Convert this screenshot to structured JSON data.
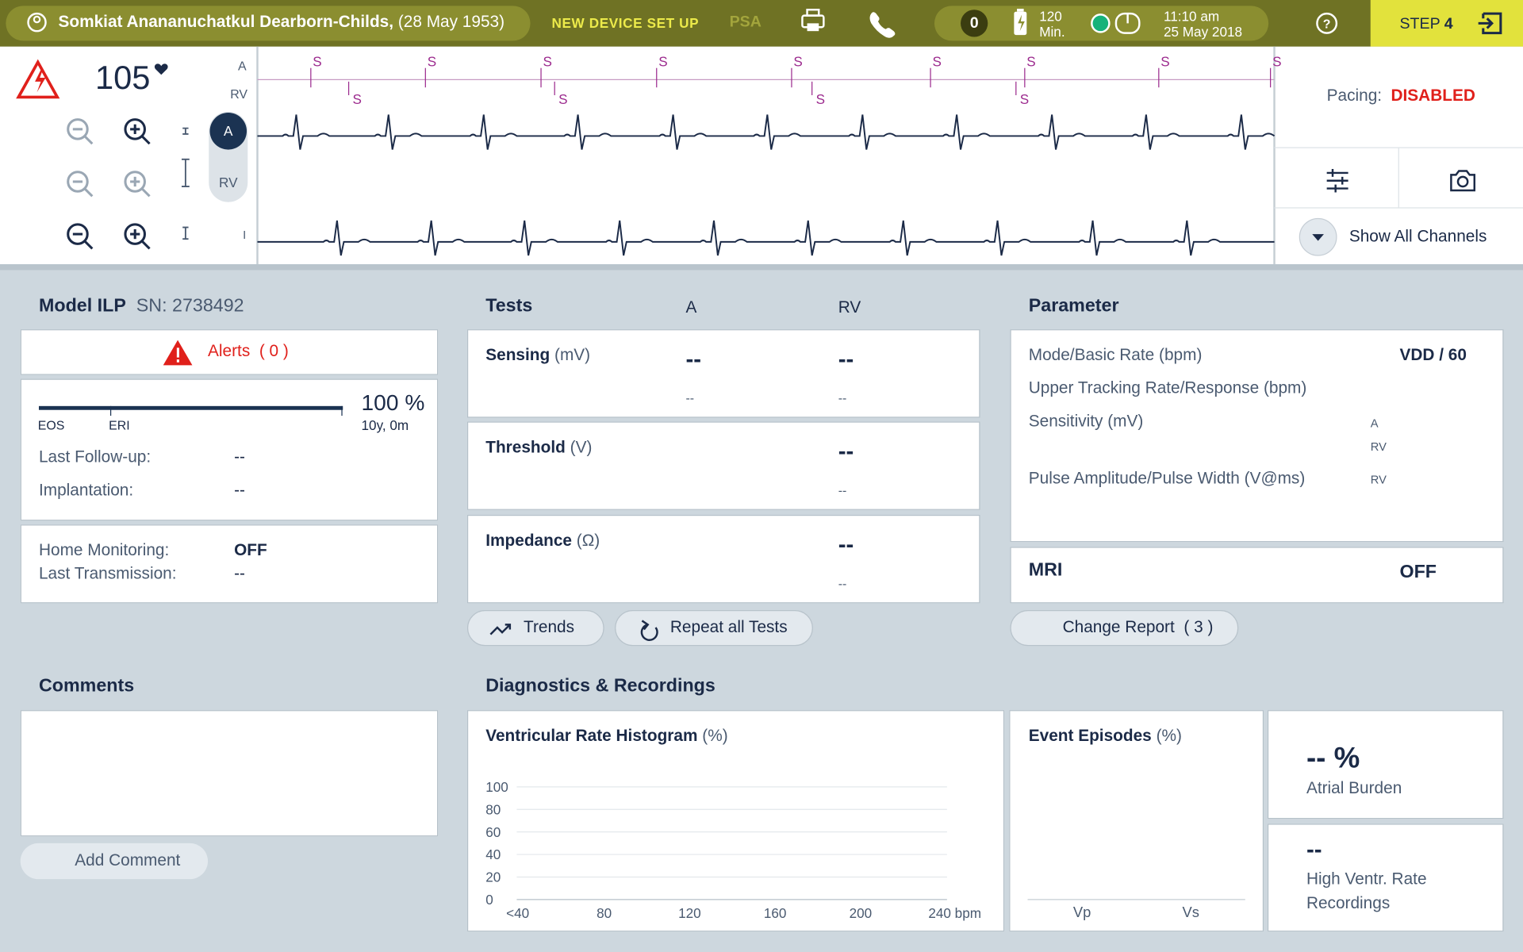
{
  "header": {
    "patient_name": "Somkiat Anananuchatkul Dearborn-Childs,",
    "birth_date": "(28 May 1953)",
    "mode": "NEW DEVICE SET UP",
    "psa": "PSA",
    "counter": "0",
    "battery_value": "120",
    "battery_unit": "Min.",
    "time": "11:10 am",
    "date": "25 May 2018",
    "step_label": "STEP",
    "step_number": "4"
  },
  "ecg": {
    "heart_rate": "105",
    "channel_labels": [
      "A",
      "RV",
      "I"
    ],
    "toggle_labels": [
      "A",
      "RV"
    ],
    "sense_marker": "S"
  },
  "pacing": {
    "label": "Pacing:",
    "status": "DISABLED",
    "show_channels": "Show All Channels"
  },
  "device": {
    "model": "Model ILP",
    "serial": "SN: 2738492",
    "alerts_label": "Alerts",
    "alerts_count": "( 0 )",
    "battery_percent": "100 %",
    "battery_remaining": "10y, 0m",
    "eos": "EOS",
    "eri": "ERI",
    "rows": [
      [
        "Last Follow-up:",
        "--"
      ],
      [
        "Implantation:",
        "--"
      ]
    ],
    "monitoring": [
      [
        "Home Monitoring:",
        "OFF"
      ],
      [
        "Last Transmission:",
        "--"
      ]
    ]
  },
  "tests": {
    "title": "Tests",
    "col_a": "A",
    "col_rv": "RV",
    "rows": [
      {
        "name": "Sensing",
        "unit": "(mV)",
        "a": "--",
        "a_sub": "--",
        "rv": "--",
        "rv_sub": "--"
      },
      {
        "name": "Threshold",
        "unit": "(V)",
        "rv": "--",
        "rv_sub": "--"
      },
      {
        "name": "Impedance",
        "unit": "(Ω)",
        "rv": "--",
        "rv_sub": "--"
      }
    ],
    "buttons": [
      "Trends",
      "Repeat all Tests"
    ]
  },
  "parameter": {
    "title": "Parameter",
    "mode_label": "Mode/Basic Rate (bpm)",
    "mode_value": "VDD / 60",
    "upper_tracking": "Upper Tracking Rate/Response (bpm)",
    "sensitivity": "Sensitivity (mV)",
    "sensitivity_a": "A",
    "sensitivity_rv": "RV",
    "pulse": "Pulse Amplitude/Pulse Width (V@ms)",
    "pulse_rv": "RV",
    "mri_label": "MRI",
    "mri_value": "OFF",
    "change_report": "Change Report",
    "change_count": "( 3 )"
  },
  "comments": {
    "title": "Comments",
    "add": "Add Comment"
  },
  "diagnostics": {
    "title": "Diagnostics & Recordings",
    "histogram": {
      "title": "Ventricular Rate Histogram",
      "unit": "(%)",
      "ylim": [
        0,
        100
      ],
      "yticks": [
        0,
        20,
        40,
        60,
        80,
        100
      ],
      "xlabels": [
        "<40",
        "80",
        "120",
        "160",
        "200",
        "240 bpm"
      ]
    },
    "episodes": {
      "title": "Event Episodes",
      "unit": "(%)",
      "xlabels": [
        "Vp",
        "Vs"
      ]
    },
    "atrial_burden": {
      "value": "-- %",
      "label": "Atrial Burden"
    },
    "high_rate": {
      "value": "--",
      "label": "High Ventr. Rate Recordings"
    }
  }
}
